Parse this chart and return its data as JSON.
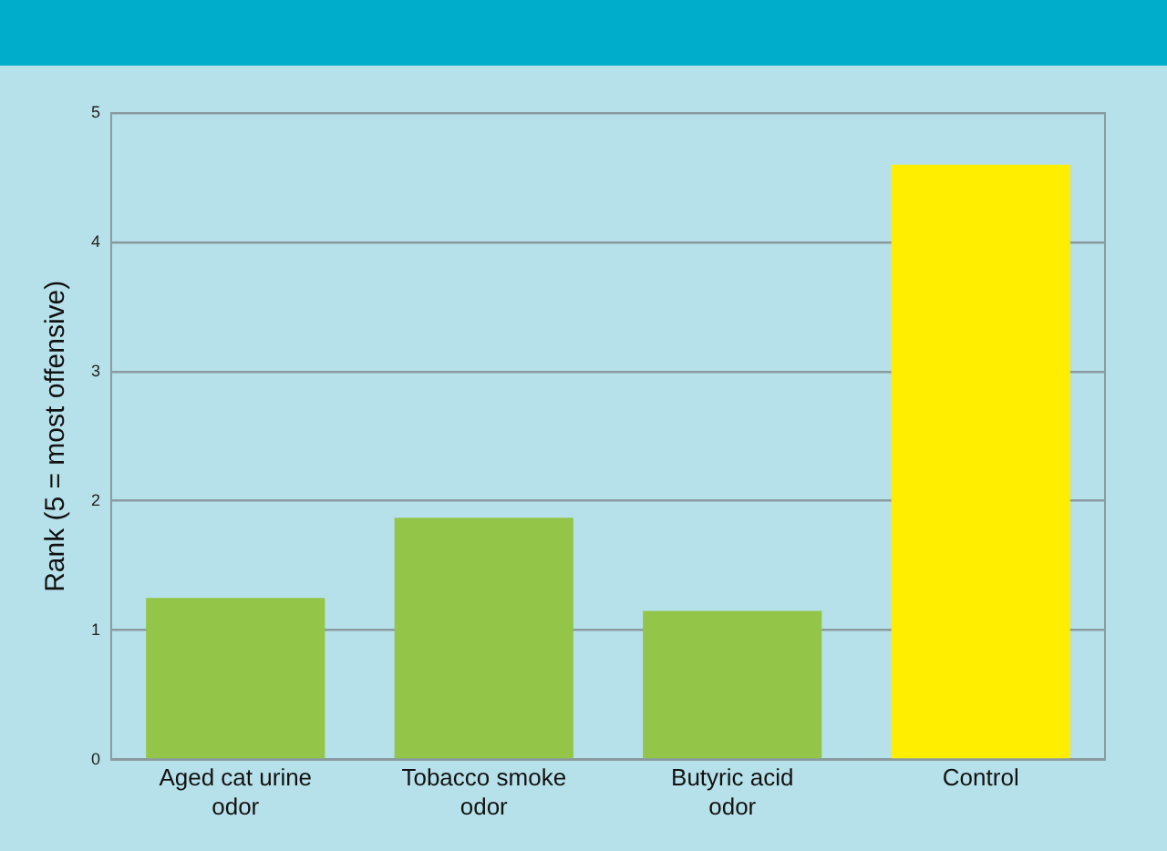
{
  "chart_data": {
    "type": "bar",
    "ylabel": "Rank (5 = most offensive)",
    "categories": [
      "Aged cat urine odor",
      "Tobacco smoke odor",
      "Butyric acid odor",
      "Control"
    ],
    "values": [
      1.25,
      1.87,
      1.15,
      4.6
    ],
    "colors": [
      "#92c548",
      "#92c548",
      "#92c548",
      "#ffee00"
    ],
    "ylim": [
      0,
      5
    ],
    "yticks": [
      0,
      1,
      2,
      3,
      4,
      5
    ],
    "grid": "y",
    "legend": false
  }
}
